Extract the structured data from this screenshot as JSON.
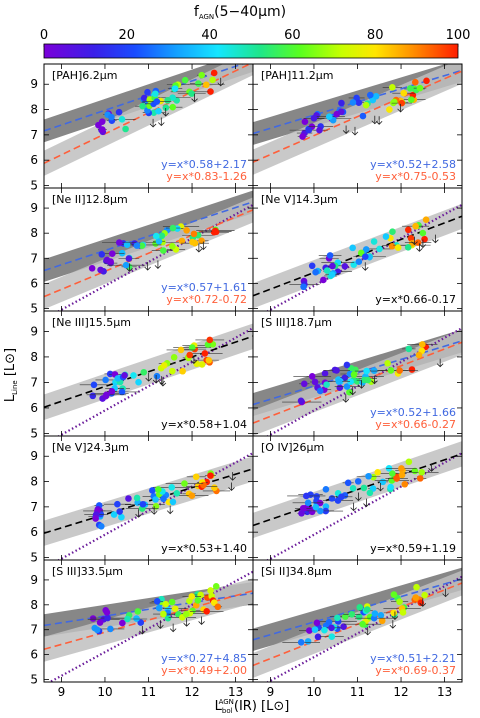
{
  "colorbar": {
    "label": "f",
    "label_sub": "AGN",
    "label_suffix": "(5−40μm)",
    "min": 0,
    "max": 100,
    "ticks": [
      "0",
      "20",
      "40",
      "60",
      "80",
      "100"
    ],
    "colormap": "rainbow"
  },
  "axes": {
    "xlabel": "L",
    "xlabel_sup": "AGN",
    "xlabel_sub": "bol",
    "xlabel_suffix": "(IR)  [L",
    "xlabel_end": "]",
    "ylabel": "L",
    "ylabel_sub": "Line",
    "ylabel_suffix": "  [L",
    "ylabel_end": "]",
    "sun_symbol": "⊙",
    "xlim": [
      8.6,
      13.4
    ],
    "ylim": [
      4.9,
      9.8
    ],
    "xticks": [
      "9",
      "10",
      "11",
      "12",
      "13"
    ],
    "yticks": [
      "5",
      "6",
      "7",
      "8",
      "9"
    ]
  },
  "colors": {
    "blue_fit": "#4169e1",
    "red_fit": "#ff5f3a",
    "black_fit": "#000000",
    "purple_line": "#6a1b9a",
    "dark_band": "#7a7a7a",
    "light_band": "#c0c0c0"
  },
  "chart_data": [
    {
      "type": "scatter",
      "label": "[PAH]6.2μm",
      "fits": [
        {
          "color": "blue",
          "text": "y=x*0.58+2.17",
          "slope": 0.58,
          "intercept": 2.17
        },
        {
          "color": "red",
          "text": "y=x*0.83-1.26",
          "slope": 0.83,
          "intercept": -1.26
        }
      ]
    },
    {
      "type": "scatter",
      "label": "[PAH]11.2μm",
      "fits": [
        {
          "color": "blue",
          "text": "y=x*0.52+2.58",
          "slope": 0.52,
          "intercept": 2.58
        },
        {
          "color": "red",
          "text": "y=x*0.75-0.53",
          "slope": 0.75,
          "intercept": -0.53
        }
      ]
    },
    {
      "type": "scatter",
      "label": "[Ne II]12.8μm",
      "fits": [
        {
          "color": "blue",
          "text": "y=x*0.57+1.61",
          "slope": 0.57,
          "intercept": 1.61
        },
        {
          "color": "red",
          "text": "y=x*0.72-0.72",
          "slope": 0.72,
          "intercept": -0.72
        }
      ]
    },
    {
      "type": "scatter",
      "label": "[Ne V]14.3μm",
      "fits": [
        {
          "color": "black",
          "text": "y=x*0.66-0.17",
          "slope": 0.66,
          "intercept": -0.17
        }
      ]
    },
    {
      "type": "scatter",
      "label": "[Ne III]15.5μm",
      "fits": [
        {
          "color": "black",
          "text": "y=x*0.58+1.04",
          "slope": 0.58,
          "intercept": 1.04
        }
      ]
    },
    {
      "type": "scatter",
      "label": "[S III]18.7μm",
      "fits": [
        {
          "color": "blue",
          "text": "y=x*0.52+1.66",
          "slope": 0.52,
          "intercept": 1.66
        },
        {
          "color": "red",
          "text": "y=x*0.66-0.27",
          "slope": 0.66,
          "intercept": -0.27
        }
      ]
    },
    {
      "type": "scatter",
      "label": "[Ne V]24.3μm",
      "fits": [
        {
          "color": "black",
          "text": "y=x*0.53+1.40",
          "slope": 0.53,
          "intercept": 1.4
        }
      ]
    },
    {
      "type": "scatter",
      "label": "[O IV]26μm",
      "fits": [
        {
          "color": "black",
          "text": "y=x*0.59+1.19",
          "slope": 0.59,
          "intercept": 1.19
        }
      ]
    },
    {
      "type": "scatter",
      "label": "[S III]33.5μm",
      "fits": [
        {
          "color": "blue",
          "text": "y=x*0.27+4.85",
          "slope": 0.27,
          "intercept": 4.85
        },
        {
          "color": "red",
          "text": "y=x*0.49+2.00",
          "slope": 0.49,
          "intercept": 2.0
        }
      ]
    },
    {
      "type": "scatter",
      "label": "[Si II]34.8μm",
      "fits": [
        {
          "color": "blue",
          "text": "y=x*0.51+2.21",
          "slope": 0.51,
          "intercept": 2.21
        },
        {
          "color": "red",
          "text": "y=x*0.69-0.37",
          "slope": 0.69,
          "intercept": -0.37
        }
      ]
    }
  ]
}
